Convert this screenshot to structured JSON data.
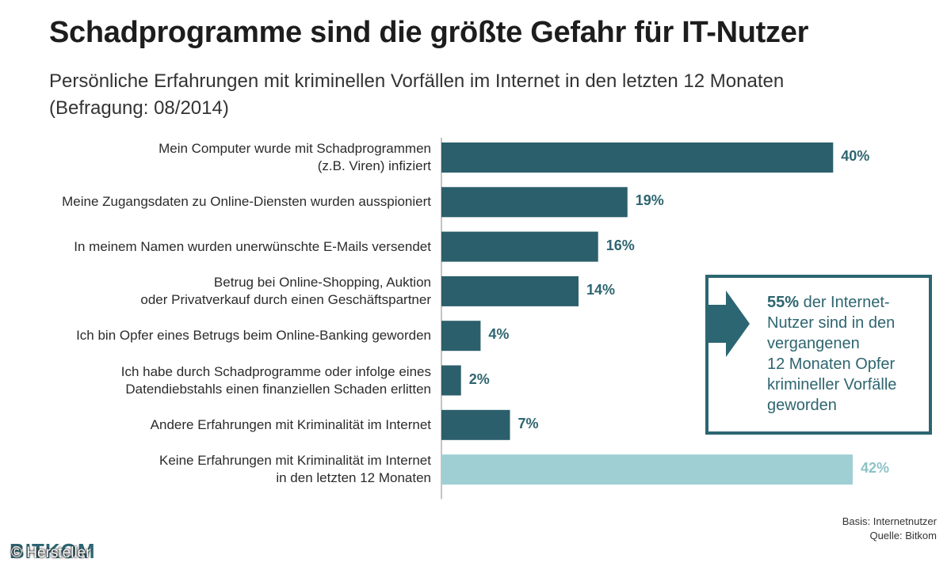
{
  "chart_data": {
    "type": "bar",
    "orientation": "horizontal",
    "title": "Schadprogramme sind die größte Gefahr für IT-Nutzer",
    "subtitle_lines": [
      "Persönliche Erfahrungen mit kriminellen Vorfällen im Internet in den letzten 12 Monaten",
      "(Befragung: 08/2014)"
    ],
    "categories": [
      [
        "Mein Computer wurde mit Schadprogrammen",
        "(z.B. Viren) infiziert"
      ],
      [
        "Meine Zugangsdaten zu Online-Diensten wurden ausspioniert"
      ],
      [
        "In meinem Namen wurden unerwünschte E-Mails versendet"
      ],
      [
        "Betrug bei Online-Shopping, Auktion",
        "oder Privatverkauf durch einen Geschäftspartner"
      ],
      [
        "Ich bin Opfer eines Betrugs beim Online-Banking geworden"
      ],
      [
        "Ich habe durch Schadprogramme oder infolge eines",
        "Datendiebstahls einen finanziellen Schaden erlitten"
      ],
      [
        "Andere Erfahrungen mit Kriminalität im Internet"
      ],
      [
        "Keine Erfahrungen mit Kriminalität im Internet",
        "in den letzten 12 Monaten"
      ]
    ],
    "values": [
      40,
      19,
      16,
      14,
      4,
      2,
      7,
      42
    ],
    "value_labels": [
      "40%",
      "19%",
      "16%",
      "14%",
      "4%",
      "2%",
      "7%",
      "42%"
    ],
    "highlight": [
      false,
      false,
      false,
      false,
      false,
      false,
      false,
      true
    ],
    "xlim": [
      0,
      42
    ],
    "colors": {
      "bar": "#2b5f6b",
      "bar_highlight": "#9fcfd3",
      "value": "#2e6570",
      "value_highlight": "#8cc3c8"
    }
  },
  "callout": {
    "highlight": "55%",
    "lines": [
      "der Internet-",
      "Nutzer sind in den",
      "vergangenen",
      "12 Monaten Opfer",
      "krimineller Vorfälle",
      "geworden"
    ],
    "color": "#2b6672"
  },
  "footer": {
    "basis": "Basis: Internetnutzer",
    "source": "Quelle: Bitkom",
    "logo": "BITKOM",
    "credit": "© Hersteller"
  }
}
